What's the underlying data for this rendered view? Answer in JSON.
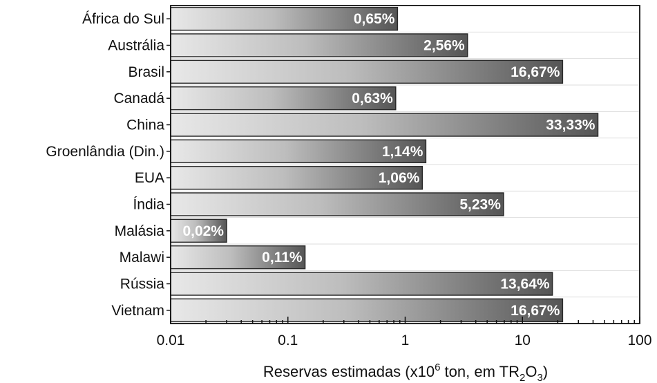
{
  "chart_data": {
    "type": "bar",
    "orientation": "horizontal",
    "x_scale": "log",
    "xlim": [
      0.01,
      100
    ],
    "x_ticks": [
      "0.01",
      "0.1",
      "1",
      "10",
      "100"
    ],
    "xlabel": {
      "prefix": "Reservas estimadas (x10",
      "exp": "6",
      "mid": " ton, em TR",
      "sub1": "2",
      "o": "O",
      "sub2": "3",
      "suffix": ")"
    },
    "grid": "horizontal lines",
    "categories": [
      "África do Sul",
      "Austrália",
      "Brasil",
      "Canadá",
      "China",
      "Groenlândia (Din.)",
      "EUA",
      "Índia",
      "Malásia",
      "Malawi",
      "Rússia",
      "Vietnam"
    ],
    "values": [
      0.86,
      3.4,
      22,
      0.83,
      44,
      1.5,
      1.4,
      6.9,
      0.03,
      0.14,
      18,
      22
    ],
    "labels": [
      "0,65%",
      "2,56%",
      "16,67%",
      "0,63%",
      "33,33%",
      "1,14%",
      "1,06%",
      "5,23%",
      "0,02%",
      "0,11%",
      "13,64%",
      "16,67%"
    ],
    "colors": {
      "bar_light": "#e6e6e6",
      "bar_dark": "#555555",
      "bar_edge": "#2a2a2a",
      "grid": "#dddddd"
    }
  }
}
